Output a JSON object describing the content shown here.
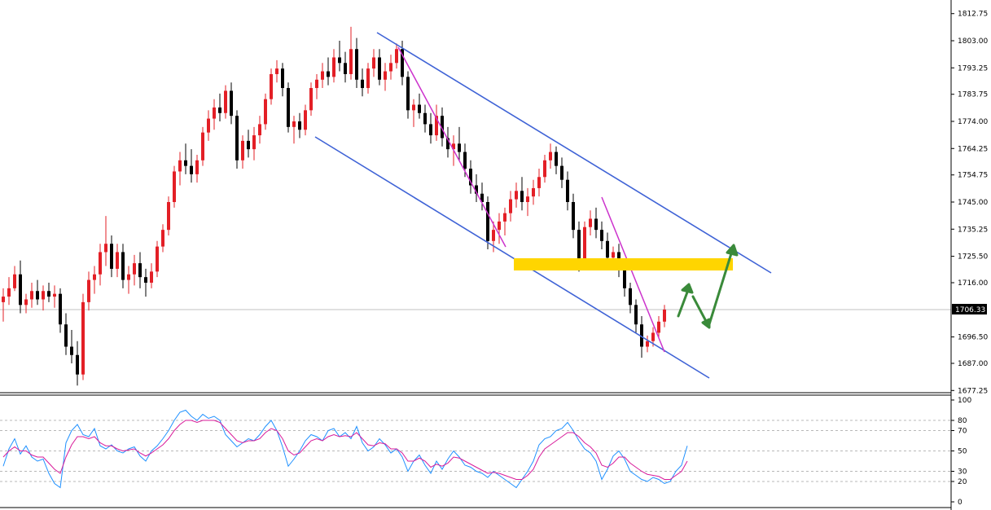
{
  "chart_data": [
    {
      "type": "candlestick",
      "title": "",
      "ylim": [
        1677.25,
        1816.5
      ],
      "ytick_labels": [
        "1812.75",
        "1803.00",
        "1793.25",
        "1783.75",
        "1774.00",
        "1764.25",
        "1754.75",
        "1745.00",
        "1735.25",
        "1725.50",
        "1716.00",
        "1696.50",
        "1687.00",
        "1677.25"
      ],
      "ytick_values": [
        1812.75,
        1803.0,
        1793.25,
        1783.75,
        1774.0,
        1764.25,
        1754.75,
        1745.0,
        1735.25,
        1725.5,
        1716.0,
        1696.5,
        1687.0,
        1677.25
      ],
      "current_price": "1706.33",
      "current_price_value": 1706.33,
      "up_color": "#e31f26",
      "down_color": "#000000",
      "candles": [
        [
          1709,
          1714,
          1702,
          1711
        ],
        [
          1711,
          1718,
          1708,
          1714
        ],
        [
          1714,
          1722,
          1713,
          1719
        ],
        [
          1719,
          1724,
          1705,
          1708
        ],
        [
          1708,
          1712,
          1705,
          1710
        ],
        [
          1710,
          1716,
          1707,
          1713
        ],
        [
          1713,
          1717,
          1708,
          1710
        ],
        [
          1710,
          1715,
          1706,
          1713
        ],
        [
          1713,
          1716,
          1709,
          1711
        ],
        [
          1711,
          1715,
          1707,
          1712
        ],
        [
          1712,
          1714,
          1698,
          1701
        ],
        [
          1701,
          1705,
          1690,
          1693
        ],
        [
          1693,
          1699,
          1687,
          1690
        ],
        [
          1690,
          1695,
          1679,
          1683
        ],
        [
          1683,
          1712,
          1681,
          1709
        ],
        [
          1709,
          1720,
          1706,
          1717
        ],
        [
          1717,
          1722,
          1712,
          1719
        ],
        [
          1719,
          1730,
          1715,
          1727
        ],
        [
          1727,
          1740,
          1722,
          1730
        ],
        [
          1730,
          1733,
          1718,
          1721
        ],
        [
          1721,
          1730,
          1718,
          1727
        ],
        [
          1727,
          1730,
          1714,
          1717
        ],
        [
          1717,
          1722,
          1712,
          1719
        ],
        [
          1719,
          1726,
          1715,
          1723
        ],
        [
          1723,
          1727,
          1714,
          1718
        ],
        [
          1718,
          1721,
          1711,
          1716
        ],
        [
          1716,
          1723,
          1714,
          1720
        ],
        [
          1720,
          1731,
          1718,
          1729
        ],
        [
          1729,
          1737,
          1727,
          1735
        ],
        [
          1735,
          1747,
          1733,
          1745
        ],
        [
          1745,
          1758,
          1743,
          1756
        ],
        [
          1756,
          1763,
          1751,
          1760
        ],
        [
          1760,
          1766,
          1755,
          1758
        ],
        [
          1758,
          1764,
          1752,
          1755
        ],
        [
          1755,
          1762,
          1752,
          1760
        ],
        [
          1760,
          1772,
          1758,
          1770
        ],
        [
          1770,
          1778,
          1767,
          1775
        ],
        [
          1775,
          1782,
          1771,
          1779
        ],
        [
          1779,
          1784,
          1774,
          1777
        ],
        [
          1777,
          1787,
          1775,
          1785
        ],
        [
          1785,
          1788,
          1773,
          1776
        ],
        [
          1776,
          1778,
          1757,
          1760
        ],
        [
          1760,
          1769,
          1757,
          1767
        ],
        [
          1767,
          1771,
          1761,
          1764
        ],
        [
          1764,
          1772,
          1760,
          1769
        ],
        [
          1769,
          1776,
          1766,
          1773
        ],
        [
          1773,
          1784,
          1771,
          1782
        ],
        [
          1782,
          1793,
          1780,
          1791
        ],
        [
          1791,
          1796,
          1788,
          1793
        ],
        [
          1793,
          1795,
          1783,
          1786
        ],
        [
          1786,
          1788,
          1770,
          1772
        ],
        [
          1772,
          1776,
          1766,
          1774
        ],
        [
          1774,
          1777,
          1768,
          1771
        ],
        [
          1771,
          1780,
          1769,
          1778
        ],
        [
          1778,
          1788,
          1776,
          1786
        ],
        [
          1786,
          1791,
          1782,
          1789
        ],
        [
          1789,
          1795,
          1786,
          1792
        ],
        [
          1792,
          1797,
          1787,
          1790
        ],
        [
          1790,
          1800,
          1788,
          1797
        ],
        [
          1797,
          1803,
          1792,
          1795
        ],
        [
          1795,
          1799,
          1788,
          1791
        ],
        [
          1791,
          1808,
          1789,
          1800
        ],
        [
          1800,
          1804,
          1786,
          1789
        ],
        [
          1789,
          1793,
          1783,
          1786
        ],
        [
          1786,
          1795,
          1784,
          1793
        ],
        [
          1793,
          1800,
          1790,
          1797
        ],
        [
          1797,
          1800,
          1787,
          1789
        ],
        [
          1789,
          1795,
          1785,
          1792
        ],
        [
          1792,
          1798,
          1789,
          1795
        ],
        [
          1795,
          1802,
          1793,
          1800
        ],
        [
          1800,
          1803,
          1787,
          1790
        ],
        [
          1790,
          1792,
          1775,
          1778
        ],
        [
          1778,
          1782,
          1772,
          1780
        ],
        [
          1780,
          1784,
          1775,
          1777
        ],
        [
          1777,
          1780,
          1770,
          1773
        ],
        [
          1773,
          1777,
          1766,
          1769
        ],
        [
          1769,
          1780,
          1767,
          1776
        ],
        [
          1776,
          1779,
          1765,
          1768
        ],
        [
          1768,
          1772,
          1761,
          1764
        ],
        [
          1764,
          1769,
          1758,
          1766
        ],
        [
          1766,
          1772,
          1760,
          1763
        ],
        [
          1763,
          1766,
          1754,
          1757
        ],
        [
          1757,
          1760,
          1748,
          1751
        ],
        [
          1751,
          1755,
          1745,
          1748
        ],
        [
          1748,
          1752,
          1742,
          1745
        ],
        [
          1745,
          1747,
          1728,
          1731
        ],
        [
          1731,
          1738,
          1727,
          1735
        ],
        [
          1735,
          1741,
          1730,
          1738
        ],
        [
          1738,
          1743,
          1733,
          1741
        ],
        [
          1741,
          1749,
          1738,
          1746
        ],
        [
          1746,
          1752,
          1743,
          1749
        ],
        [
          1749,
          1754,
          1742,
          1745
        ],
        [
          1745,
          1750,
          1740,
          1747
        ],
        [
          1747,
          1753,
          1744,
          1750
        ],
        [
          1750,
          1757,
          1747,
          1754
        ],
        [
          1754,
          1762,
          1752,
          1760
        ],
        [
          1760,
          1766,
          1757,
          1763
        ],
        [
          1763,
          1765,
          1755,
          1758
        ],
        [
          1758,
          1761,
          1750,
          1753
        ],
        [
          1753,
          1756,
          1742,
          1745
        ],
        [
          1745,
          1748,
          1732,
          1735
        ],
        [
          1735,
          1738,
          1720,
          1723
        ],
        [
          1723,
          1738,
          1721,
          1736
        ],
        [
          1736,
          1742,
          1733,
          1739
        ],
        [
          1739,
          1743,
          1732,
          1735
        ],
        [
          1735,
          1738,
          1728,
          1731
        ],
        [
          1731,
          1734,
          1722,
          1725
        ],
        [
          1725,
          1729,
          1721,
          1727
        ],
        [
          1727,
          1730,
          1718,
          1721
        ],
        [
          1721,
          1724,
          1711,
          1714
        ],
        [
          1714,
          1716,
          1705,
          1708
        ],
        [
          1708,
          1710,
          1698,
          1701
        ],
        [
          1701,
          1704,
          1689,
          1693
        ],
        [
          1693,
          1697,
          1691,
          1695
        ],
        [
          1695,
          1700,
          1693,
          1698
        ],
        [
          1698,
          1704,
          1696,
          1702
        ],
        [
          1702,
          1708,
          1700,
          1706.33
        ]
      ]
    },
    {
      "type": "line",
      "title": "",
      "ylim": [
        0,
        100
      ],
      "ytick_labels": [
        "100",
        "80",
        "70",
        "50",
        "30",
        "20",
        "0"
      ],
      "ytick_values": [
        100,
        80,
        70,
        50,
        30,
        20,
        0
      ],
      "grid_levels": [
        80,
        70,
        50,
        30,
        20
      ],
      "series": [
        {
          "color": "#1e90ff",
          "values": [
            35,
            52,
            62,
            47,
            55,
            44,
            40,
            42,
            28,
            18,
            14,
            58,
            70,
            76,
            66,
            64,
            72,
            55,
            52,
            56,
            50,
            48,
            52,
            54,
            45,
            40,
            50,
            55,
            62,
            70,
            80,
            88,
            90,
            84,
            80,
            86,
            82,
            84,
            80,
            66,
            60,
            54,
            58,
            62,
            60,
            66,
            74,
            80,
            70,
            54,
            35,
            42,
            50,
            60,
            66,
            64,
            60,
            70,
            72,
            64,
            68,
            62,
            74,
            58,
            50,
            54,
            62,
            56,
            48,
            52,
            44,
            30,
            40,
            46,
            36,
            28,
            40,
            32,
            42,
            50,
            44,
            36,
            34,
            30,
            28,
            24,
            30,
            26,
            22,
            18,
            14,
            22,
            30,
            40,
            56,
            62,
            64,
            70,
            72,
            78,
            70,
            60,
            52,
            48,
            40,
            22,
            32,
            45,
            50,
            42,
            30,
            26,
            22,
            20,
            24,
            22,
            18,
            20,
            30,
            36,
            55
          ]
        },
        {
          "color": "#d81b9a",
          "values": [
            44,
            50,
            54,
            50,
            50,
            46,
            44,
            44,
            38,
            32,
            28,
            44,
            56,
            64,
            64,
            62,
            64,
            58,
            55,
            55,
            52,
            50,
            51,
            52,
            48,
            45,
            48,
            52,
            56,
            62,
            70,
            76,
            80,
            80,
            78,
            80,
            80,
            80,
            78,
            72,
            66,
            60,
            58,
            60,
            60,
            62,
            68,
            72,
            70,
            62,
            50,
            46,
            48,
            54,
            60,
            62,
            60,
            64,
            66,
            64,
            65,
            64,
            68,
            62,
            56,
            55,
            58,
            57,
            52,
            52,
            48,
            40,
            40,
            43,
            40,
            34,
            37,
            35,
            38,
            44,
            43,
            40,
            37,
            34,
            31,
            28,
            29,
            28,
            26,
            24,
            22,
            22,
            26,
            32,
            44,
            52,
            56,
            60,
            64,
            68,
            68,
            64,
            58,
            54,
            48,
            36,
            34,
            38,
            44,
            44,
            38,
            34,
            30,
            27,
            26,
            25,
            22,
            22,
            26,
            30,
            40
          ]
        }
      ]
    }
  ]
}
